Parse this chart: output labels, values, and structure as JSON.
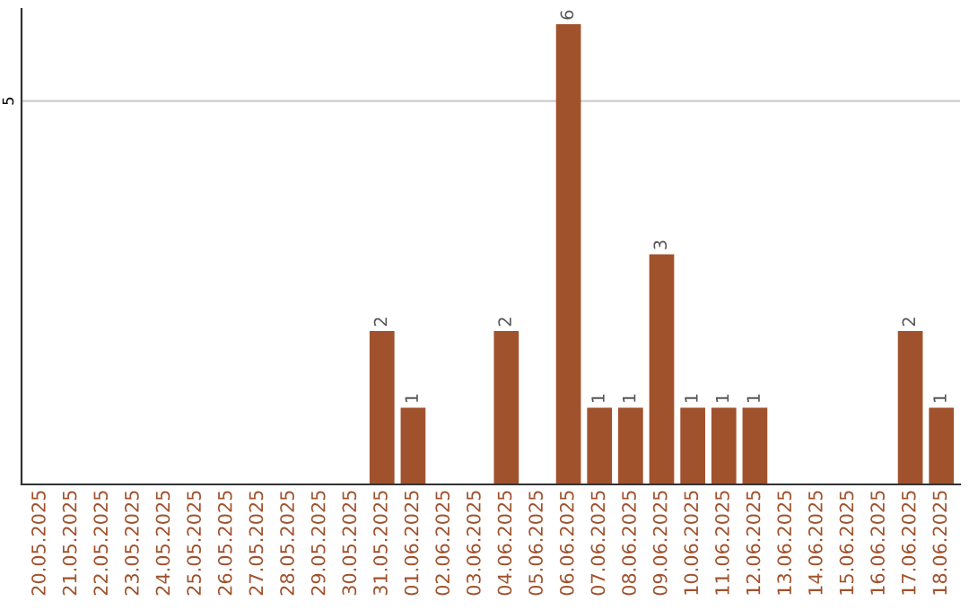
{
  "chart_data": {
    "type": "bar",
    "categories": [
      "20.05.2025",
      "21.05.2025",
      "22.05.2025",
      "23.05.2025",
      "24.05.2025",
      "25.05.2025",
      "26.05.2025",
      "27.05.2025",
      "28.05.2025",
      "29.05.2025",
      "30.05.2025",
      "31.05.2025",
      "01.06.2025",
      "02.06.2025",
      "03.06.2025",
      "04.06.2025",
      "05.06.2025",
      "06.06.2025",
      "07.06.2025",
      "08.06.2025",
      "09.06.2025",
      "10.06.2025",
      "11.06.2025",
      "12.06.2025",
      "13.06.2025",
      "14.06.2025",
      "15.06.2025",
      "16.06.2025",
      "17.06.2025",
      "18.06.2025"
    ],
    "values": [
      0,
      0,
      0,
      0,
      0,
      0,
      0,
      0,
      0,
      0,
      0,
      2,
      1,
      0,
      0,
      2,
      0,
      6,
      1,
      1,
      3,
      1,
      1,
      1,
      0,
      0,
      0,
      0,
      2,
      1
    ],
    "value_labels": [
      null,
      null,
      null,
      null,
      null,
      null,
      null,
      null,
      null,
      null,
      null,
      "2",
      "1",
      null,
      null,
      "2",
      null,
      "6",
      "1",
      "1",
      "3",
      "1",
      "1",
      "1",
      null,
      null,
      null,
      null,
      "2",
      "1"
    ],
    "color": "#a0522d",
    "ylim": [
      0,
      6.2
    ],
    "yticks": [
      5
    ],
    "grid": "y",
    "legend": false
  }
}
